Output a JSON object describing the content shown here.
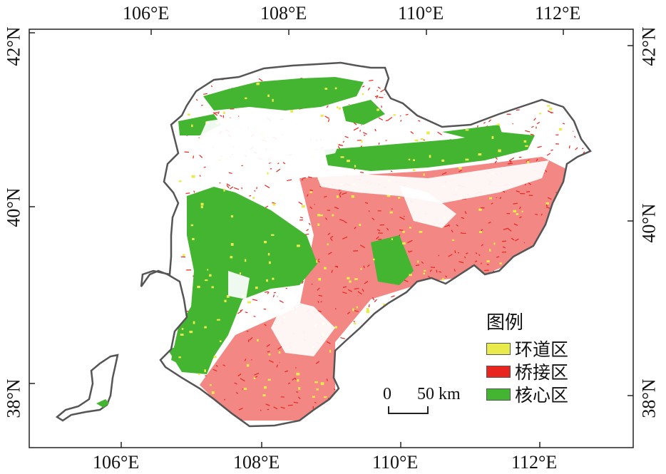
{
  "top_lon_labels": [
    "106°E",
    "108°E",
    "110°E",
    "112°E"
  ],
  "bottom_lon_labels": [
    "106°E",
    "108°E",
    "110°E",
    "112°E"
  ],
  "left_lat_labels": [
    "42°N",
    "40°N",
    "38°N"
  ],
  "right_lat_labels": [
    "42°N",
    "40°N",
    "38°N"
  ],
  "legend": {
    "title": "图例",
    "items": [
      {
        "label": "环道区",
        "color": "#e9ea4c"
      },
      {
        "label": "桥接区",
        "color": "#e8251f"
      },
      {
        "label": "核心区",
        "color": "#44b531"
      }
    ]
  },
  "scale_bar": {
    "start": "0",
    "end": "50 km"
  },
  "colors": {
    "outline": "#555555",
    "frame": "#222222",
    "background": "#ffffff"
  }
}
